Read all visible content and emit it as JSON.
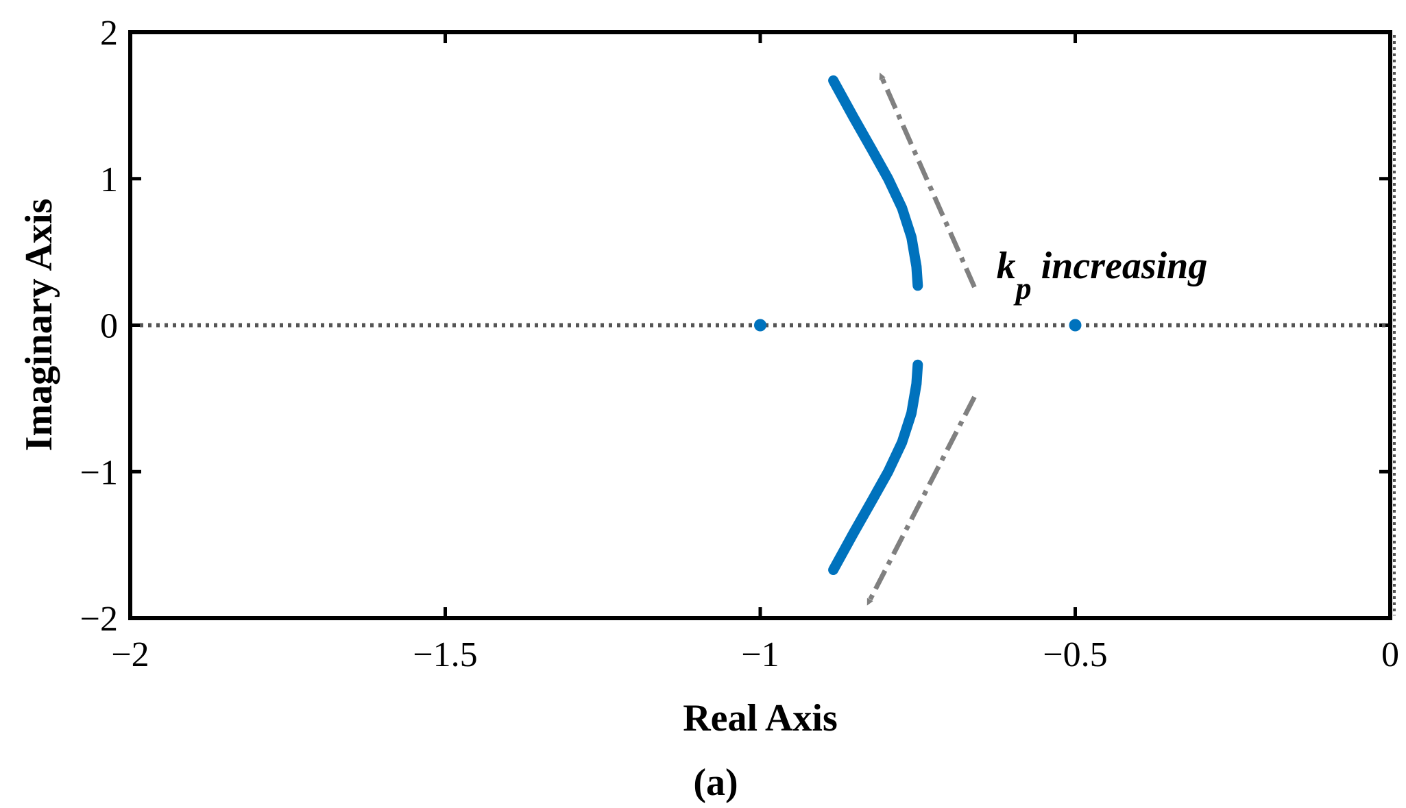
{
  "chart_data": {
    "type": "scatter",
    "xlabel": "Real Axis",
    "ylabel": "Imaginary Axis",
    "caption": "(a)",
    "xlim": [
      -2,
      0
    ],
    "ylim": [
      -2,
      2
    ],
    "xticks": [
      -2,
      -1.5,
      -1,
      -0.5,
      0
    ],
    "yticks": [
      -2,
      -1,
      0,
      1,
      2
    ],
    "xtick_labels": [
      "−2",
      "−1.5",
      "−1",
      "−0.5",
      "0"
    ],
    "ytick_labels": [
      "−2",
      "−1",
      "0",
      "1",
      "2"
    ],
    "grid": false,
    "colors": {
      "locus": "#0072BD",
      "arrow": "#808080",
      "reference_line": "#555555",
      "axes": "#000000"
    },
    "reference_lines": [
      {
        "orientation": "horizontal",
        "y": 0,
        "style": "dotted"
      },
      {
        "orientation": "vertical",
        "x": 0,
        "style": "dotted"
      }
    ],
    "points": [
      {
        "x": -1.0,
        "y": 0
      },
      {
        "x": -0.5,
        "y": 0
      }
    ],
    "branches": [
      {
        "points": [
          [
            -0.75,
            0.27
          ],
          [
            -0.752,
            0.4
          ],
          [
            -0.76,
            0.6
          ],
          [
            -0.775,
            0.8
          ],
          [
            -0.797,
            1.0
          ],
          [
            -0.823,
            1.2
          ],
          [
            -0.852,
            1.42
          ],
          [
            -0.884,
            1.67
          ]
        ]
      },
      {
        "points": [
          [
            -0.75,
            -0.27
          ],
          [
            -0.752,
            -0.4
          ],
          [
            -0.76,
            -0.6
          ],
          [
            -0.775,
            -0.8
          ],
          [
            -0.797,
            -1.0
          ],
          [
            -0.823,
            -1.2
          ],
          [
            -0.852,
            -1.42
          ],
          [
            -0.884,
            -1.67
          ]
        ]
      }
    ],
    "arrows": [
      {
        "from": [
          -0.66,
          0.26
        ],
        "to": [
          -0.81,
          1.72
        ]
      },
      {
        "from": [
          -0.66,
          -0.49
        ],
        "to": [
          -0.83,
          -1.91
        ]
      }
    ],
    "annotation": {
      "base": "k",
      "subscript": "p",
      "text": " increasing",
      "anchor": [
        -0.625,
        0.32
      ]
    }
  }
}
